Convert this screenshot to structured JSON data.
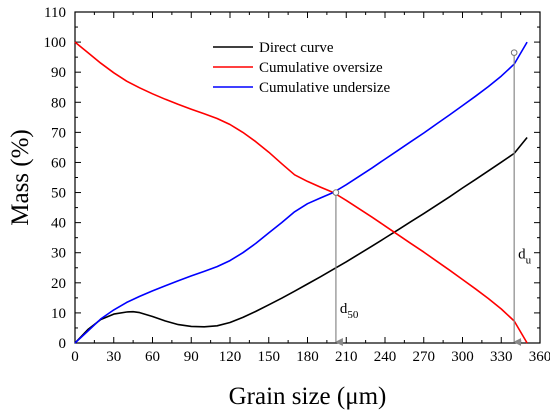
{
  "chart_data": {
    "type": "line",
    "title": "",
    "xlabel": "Grain size (μm)",
    "ylabel": "Mass (%)",
    "xlim": [
      0,
      360
    ],
    "ylim": [
      0,
      110
    ],
    "xticks": [
      0,
      30,
      60,
      90,
      120,
      150,
      180,
      210,
      240,
      270,
      300,
      330,
      360
    ],
    "yticks": [
      0,
      10,
      20,
      30,
      40,
      50,
      60,
      70,
      80,
      90,
      100,
      110
    ],
    "grid": false,
    "legend_position": "top-center",
    "series": [
      {
        "name": "Direct curve",
        "color": "#000000",
        "x": [
          0,
          10,
          20,
          30,
          40,
          45,
          50,
          60,
          70,
          80,
          90,
          100,
          110,
          120,
          130,
          140,
          150,
          160,
          170,
          180,
          190,
          200,
          210,
          220,
          230,
          240,
          250,
          260,
          270,
          280,
          290,
          300,
          310,
          320,
          330,
          340,
          350
        ],
        "y": [
          0,
          4.5,
          7.8,
          9.6,
          10.3,
          10.4,
          10.1,
          8.8,
          7.3,
          6.1,
          5.5,
          5.4,
          5.7,
          6.8,
          8.5,
          10.5,
          12.7,
          14.9,
          17.2,
          19.6,
          22.0,
          24.5,
          27.0,
          29.6,
          32.2,
          34.9,
          37.6,
          40.3,
          43.0,
          45.8,
          48.6,
          51.5,
          54.3,
          57.2,
          60.1,
          63.0,
          68.3
        ]
      },
      {
        "name": "Cumulative oversize",
        "color": "#ff0000",
        "x": [
          0,
          10,
          20,
          30,
          40,
          50,
          60,
          70,
          80,
          90,
          100,
          110,
          120,
          130,
          140,
          150,
          160,
          170,
          180,
          190,
          200,
          210,
          220,
          230,
          240,
          250,
          260,
          270,
          280,
          290,
          300,
          310,
          320,
          330,
          340,
          350
        ],
        "y": [
          100,
          96.5,
          93.0,
          89.8,
          87.0,
          84.8,
          82.8,
          81.0,
          79.3,
          77.7,
          76.2,
          74.6,
          72.6,
          70.0,
          66.9,
          63.4,
          59.6,
          55.9,
          53.7,
          51.8,
          50.0,
          47.4,
          44.6,
          41.8,
          38.9,
          36.0,
          33.1,
          30.2,
          27.2,
          24.2,
          21.1,
          18.0,
          14.8,
          11.3,
          7.3,
          0
        ]
      },
      {
        "name": "Cumulative undersize",
        "color": "#0000ff",
        "x": [
          0,
          10,
          20,
          30,
          40,
          50,
          60,
          70,
          80,
          90,
          100,
          110,
          120,
          130,
          140,
          150,
          160,
          170,
          180,
          190,
          200,
          210,
          220,
          230,
          240,
          250,
          260,
          270,
          280,
          290,
          300,
          310,
          320,
          330,
          340,
          350
        ],
        "y": [
          0,
          4.0,
          8.0,
          11.0,
          13.5,
          15.5,
          17.3,
          19.0,
          20.7,
          22.3,
          23.8,
          25.4,
          27.4,
          30.0,
          33.1,
          36.6,
          40.0,
          43.6,
          46.3,
          48.2,
          50.0,
          52.6,
          55.4,
          58.2,
          61.1,
          64.0,
          66.9,
          69.8,
          72.8,
          75.8,
          78.9,
          82.0,
          85.2,
          88.7,
          92.7,
          100
        ]
      }
    ],
    "annotations": [
      {
        "label": "d",
        "subscript": "50",
        "x": 202,
        "y": 50
      },
      {
        "label": "d",
        "subscript": "u",
        "x": 340,
        "y": 96.5
      }
    ]
  }
}
